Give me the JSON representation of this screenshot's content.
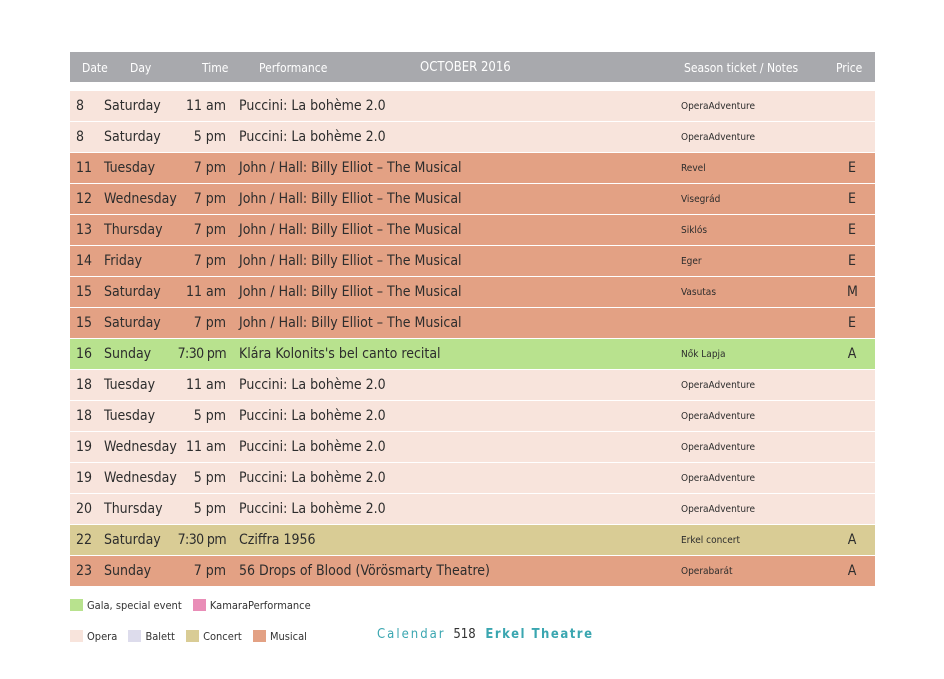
{
  "header": {
    "date": "Date",
    "day": "Day",
    "time": "Time",
    "performance": "Performance",
    "month": "OCTOBER 2016",
    "notes": "Season ticket / Notes",
    "price": "Price"
  },
  "colors": {
    "opera": "#f8e4dc",
    "musical": "#e3a184",
    "gala": "#b8e28e",
    "concert": "#d9cc95",
    "balett": "#dddcec",
    "kamara": "#e98db7"
  },
  "rows": [
    {
      "date": "8",
      "day": "Saturday",
      "time": "11 am",
      "performance": "Puccini: La bohème 2.0",
      "note": "OperaAdventure",
      "price": "",
      "category": "opera"
    },
    {
      "date": "8",
      "day": "Saturday",
      "time": "5 pm",
      "performance": "Puccini: La bohème 2.0",
      "note": "OperaAdventure",
      "price": "",
      "category": "opera"
    },
    {
      "date": "11",
      "day": "Tuesday",
      "time": "7 pm",
      "performance": "John / Hall: Billy Elliot – The Musical",
      "note": "Revel",
      "price": "E",
      "category": "musical"
    },
    {
      "date": "12",
      "day": "Wednesday",
      "time": "7 pm",
      "performance": "John / Hall: Billy Elliot – The Musical",
      "note": "Visegrád",
      "price": "E",
      "category": "musical"
    },
    {
      "date": "13",
      "day": "Thursday",
      "time": "7 pm",
      "performance": "John / Hall: Billy Elliot – The Musical",
      "note": "Siklós",
      "price": "E",
      "category": "musical"
    },
    {
      "date": "14",
      "day": "Friday",
      "time": "7 pm",
      "performance": "John / Hall: Billy Elliot – The Musical",
      "note": "Eger",
      "price": "E",
      "category": "musical"
    },
    {
      "date": "15",
      "day": "Saturday",
      "time": "11 am",
      "performance": "John / Hall: Billy Elliot – The Musical",
      "note": "Vasutas",
      "price": "M",
      "category": "musical"
    },
    {
      "date": "15",
      "day": "Saturday",
      "time": "7 pm",
      "performance": "John / Hall: Billy Elliot – The Musical",
      "note": "",
      "price": "E",
      "category": "musical"
    },
    {
      "date": "16",
      "day": "Sunday",
      "time": "7:30 pm",
      "performance": "Klára Kolonits's bel canto recital",
      "note": "Nők Lapja",
      "price": "A",
      "category": "gala"
    },
    {
      "date": "18",
      "day": "Tuesday",
      "time": "11 am",
      "performance": "Puccini: La bohème 2.0",
      "note": "OperaAdventure",
      "price": "",
      "category": "opera"
    },
    {
      "date": "18",
      "day": "Tuesday",
      "time": "5 pm",
      "performance": "Puccini: La bohème 2.0",
      "note": "OperaAdventure",
      "price": "",
      "category": "opera"
    },
    {
      "date": "19",
      "day": "Wednesday",
      "time": "11 am",
      "performance": "Puccini: La bohème 2.0",
      "note": "OperaAdventure",
      "price": "",
      "category": "opera"
    },
    {
      "date": "19",
      "day": "Wednesday",
      "time": "5 pm",
      "performance": "Puccini: La bohème 2.0",
      "note": "OperaAdventure",
      "price": "",
      "category": "opera"
    },
    {
      "date": "20",
      "day": "Thursday",
      "time": "5 pm",
      "performance": "Puccini: La bohème 2.0",
      "note": "OperaAdventure",
      "price": "",
      "category": "opera"
    },
    {
      "date": "22",
      "day": "Saturday",
      "time": "7:30 pm",
      "performance": "Cziffra 1956",
      "note": "Erkel concert",
      "price": "A",
      "category": "concert"
    },
    {
      "date": "23",
      "day": "Sunday",
      "time": "7 pm",
      "performance": "56 Drops of Blood (Vörösmarty Theatre)",
      "note": "Operabarát",
      "price": "A",
      "category": "musical"
    }
  ],
  "legend": {
    "gala": "Gala, special event",
    "kamara": "KamaraPerformance",
    "opera": "Opera",
    "balett": "Balett",
    "concert": "Concert",
    "musical": "Musical"
  },
  "footer": {
    "calendar": "Calendar",
    "page": "518",
    "theatre": "Erkel Theatre"
  }
}
